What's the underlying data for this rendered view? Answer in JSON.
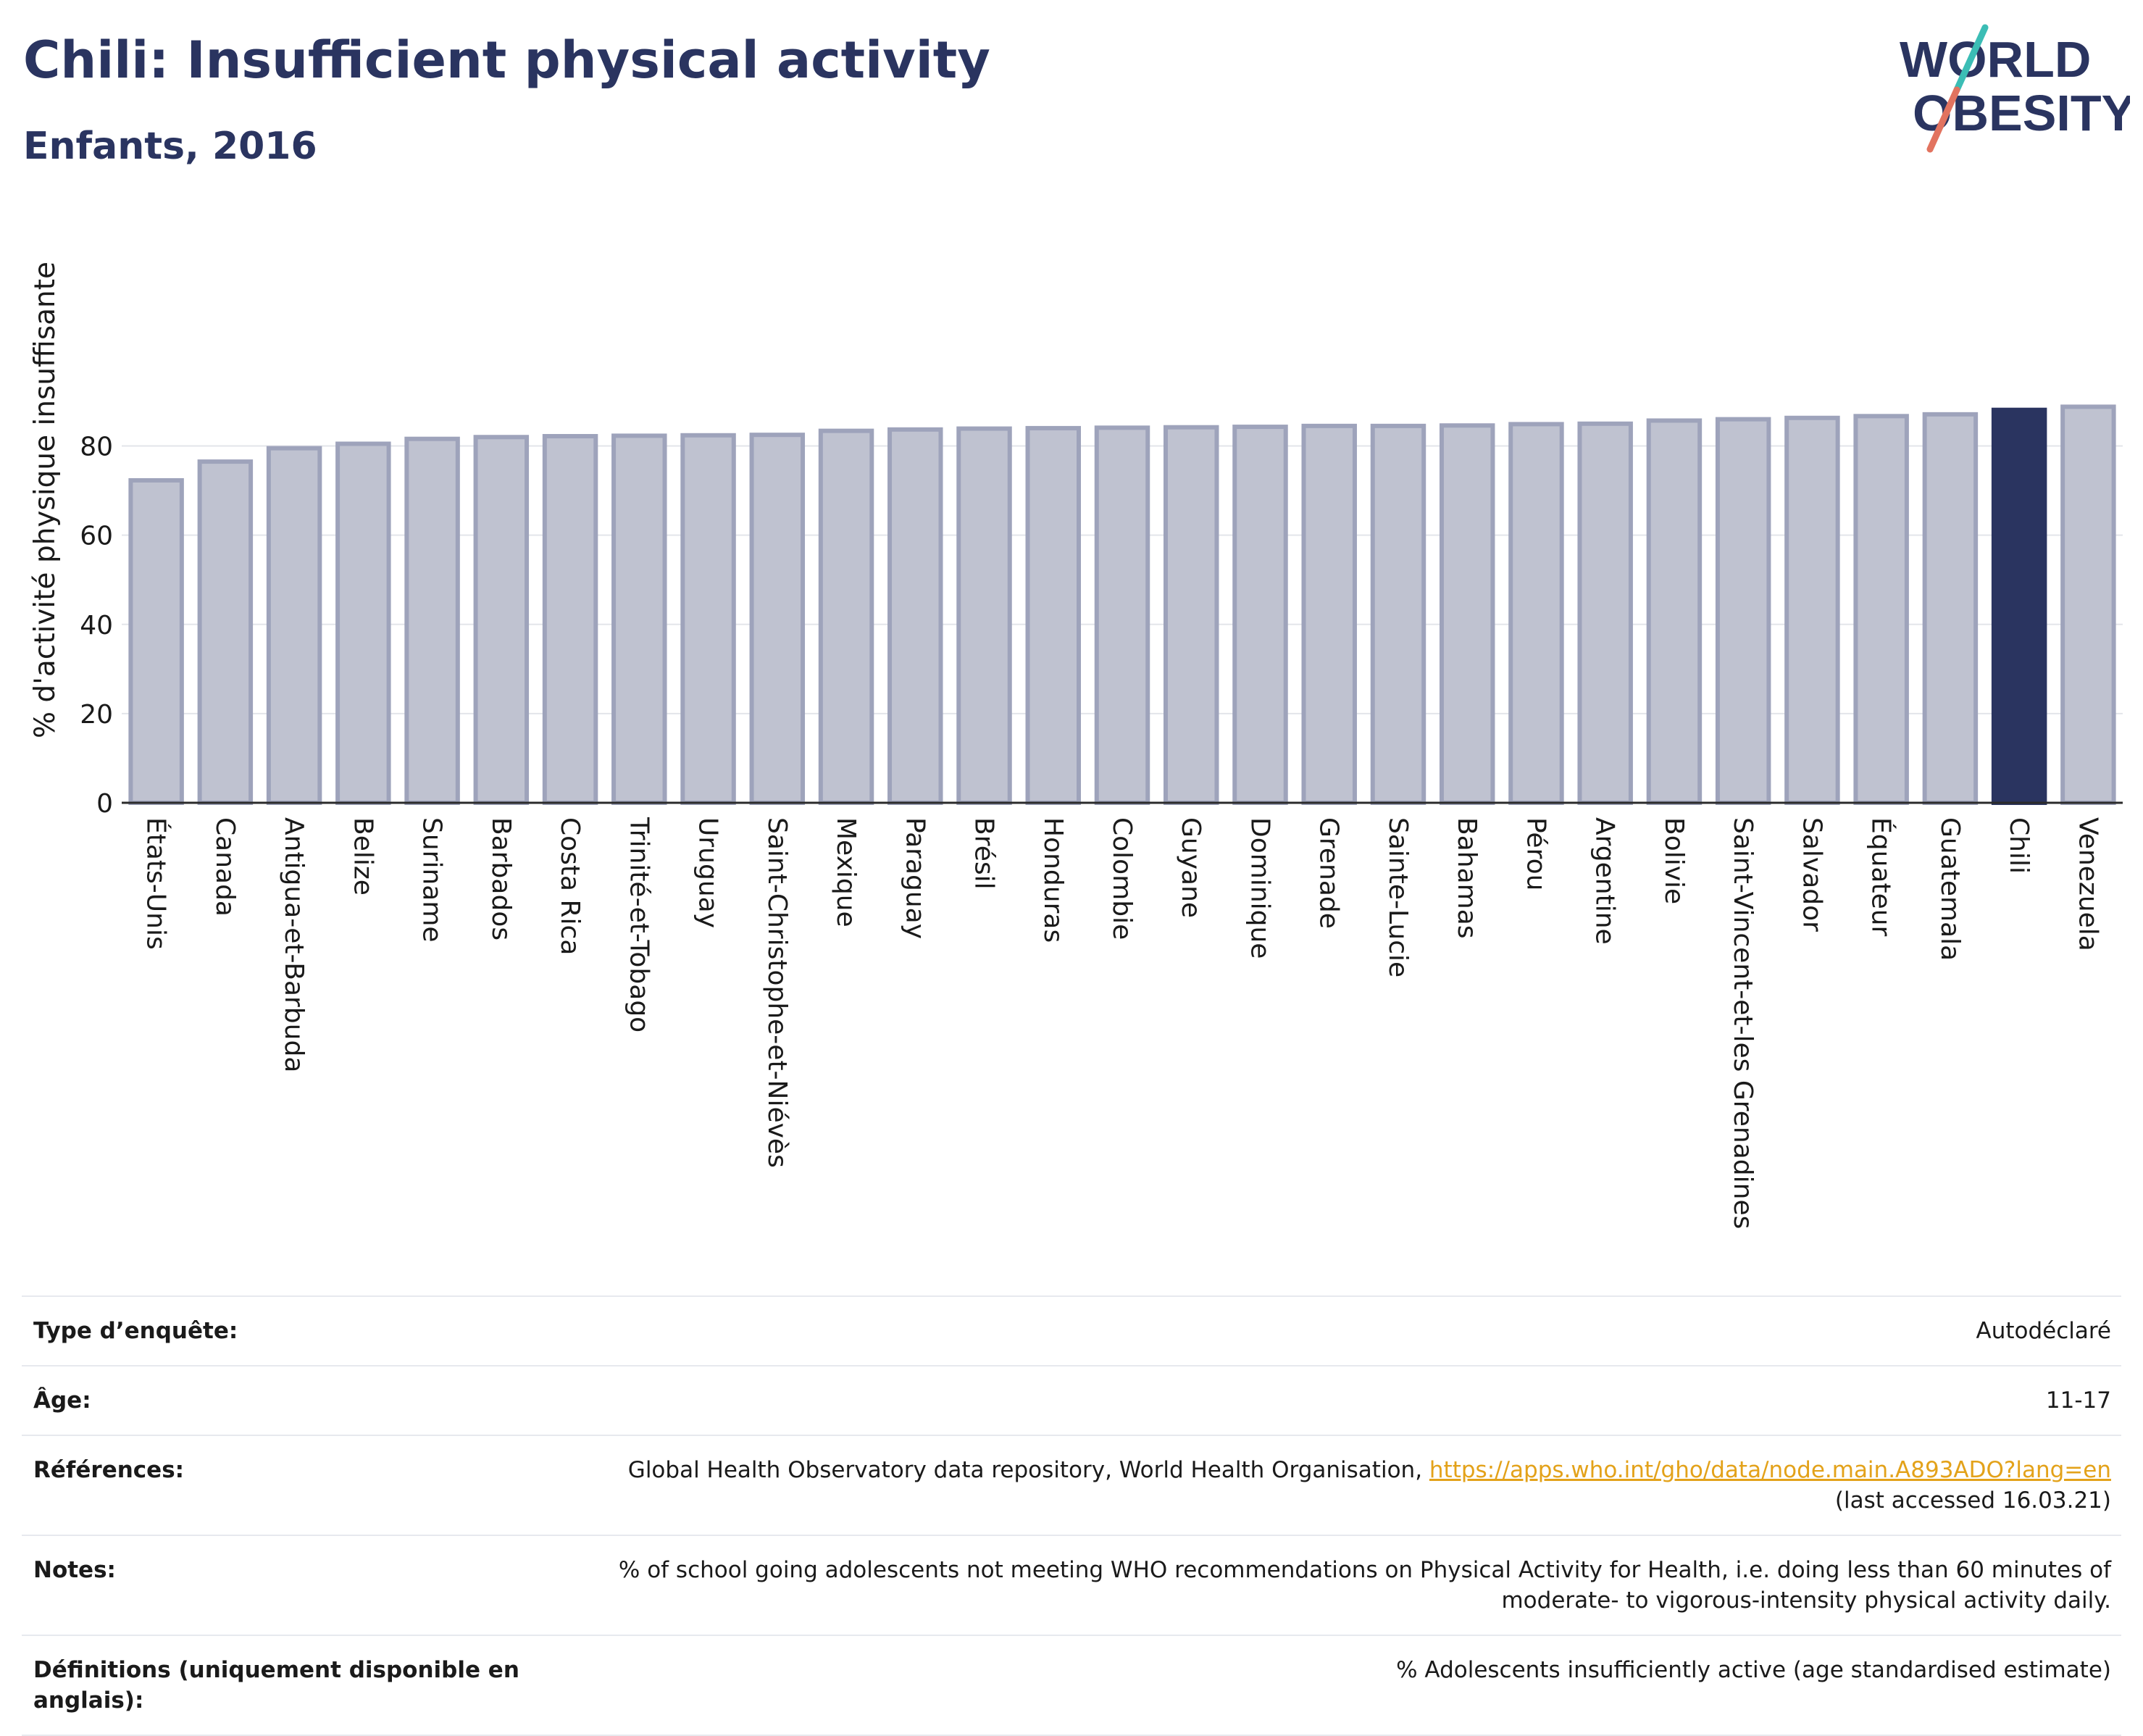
{
  "header": {
    "title": "Chili: Insufficient physical activity",
    "subtitle": "Enfants, 2016",
    "logo_line1": "WORLD",
    "logo_line2": "OBESITY"
  },
  "colors": {
    "accent": "#2a3460",
    "bar_fill": "#bfc2d0",
    "bar_stroke": "#9ea3bb",
    "highlight": "#2a3460",
    "link": "#e3a21a",
    "logo_teal": "#3bbdb5",
    "logo_coral": "#e2735f"
  },
  "chart_data": {
    "type": "bar",
    "title": "",
    "xlabel": "",
    "ylabel": "% d'activité physique insuffisante",
    "ylim": [
      0,
      90
    ],
    "yticks": [
      0,
      20,
      40,
      60,
      80
    ],
    "grid": true,
    "highlight": "Chili",
    "categories": [
      "États-Unis",
      "Canada",
      "Antigua-et-Barbuda",
      "Belize",
      "Suriname",
      "Barbados",
      "Costa Rica",
      "Trinité-et-Tobago",
      "Uruguay",
      "Saint-Christophe-et-Niévès",
      "Mexique",
      "Paraguay",
      "Brésil",
      "Honduras",
      "Colombie",
      "Guyane",
      "Dominique",
      "Grenade",
      "Sainte-Lucie",
      "Bahamas",
      "Pérou",
      "Argentine",
      "Bolivie",
      "Saint-Vincent-et-les Grenadines",
      "Salvador",
      "Équateur",
      "Guatemala",
      "Chili",
      "Venezuela"
    ],
    "values": [
      72.3,
      76.5,
      79.5,
      80.5,
      81.6,
      82.0,
      82.2,
      82.3,
      82.4,
      82.5,
      83.4,
      83.7,
      83.9,
      84.0,
      84.1,
      84.2,
      84.3,
      84.5,
      84.5,
      84.6,
      84.9,
      85.0,
      85.7,
      86.0,
      86.3,
      86.7,
      87.1,
      88.1,
      88.8
    ]
  },
  "details": [
    {
      "key": "Type d’enquête:",
      "value": "Autodéclaré"
    },
    {
      "key": "Âge:",
      "value": "11-17"
    },
    {
      "key": "Références:",
      "value_prefix": "Global Health Observatory data repository, World Health Organisation,",
      "link": "https://apps.who.int/gho/data/node.main.A893ADO?lang=en",
      "value_suffix": "(last accessed 16.03.21)"
    },
    {
      "key": "Notes:",
      "value_line1": "% of school going adolescents not meeting WHO recommendations on Physical Activity for Health, i.e. doing less than 60 minutes of",
      "value_line2": "moderate- to vigorous-intensity physical activity daily."
    },
    {
      "key": "Définitions (uniquement disponible en anglais):",
      "value": "% Adolescents insufficiently active (age standardised estimate)"
    }
  ]
}
